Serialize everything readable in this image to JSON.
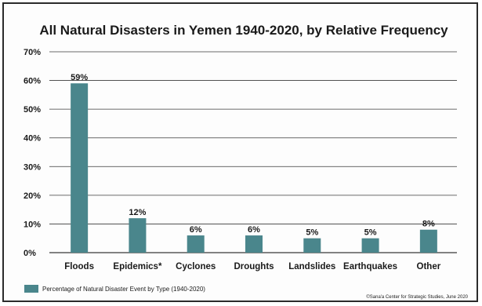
{
  "chart_data": {
    "type": "bar",
    "title": "All Natural Disasters in Yemen 1940-2020, by Relative Frequency",
    "categories": [
      "Floods",
      "Epidemics*",
      "Cyclones",
      "Droughts",
      "Landslides",
      "Earthquakes",
      "Other"
    ],
    "series": [
      {
        "name": "Percentage of Natural Disaster Event by Type (1940-2020)",
        "values": [
          59,
          12,
          6,
          6,
          5,
          5,
          8
        ],
        "data_labels": [
          "59%",
          "12%",
          "6%",
          "6%",
          "5%",
          "5%",
          "8%"
        ]
      }
    ],
    "xlabel": "",
    "ylabel": "",
    "ylim": [
      0,
      70
    ],
    "yticks": [
      0,
      10,
      20,
      30,
      40,
      50,
      60,
      70
    ],
    "ytick_labels": [
      "0%",
      "10%",
      "20%",
      "30%",
      "40%",
      "50%",
      "60%",
      "70%"
    ],
    "grid": true,
    "legend_position": "bottom-left",
    "source_note": "©Sana'a Center for Strategic Studies, June 2020",
    "colors": {
      "bar": "#4a868c",
      "grid": "#3a3a3a",
      "text": "#1a1a1a"
    }
  }
}
